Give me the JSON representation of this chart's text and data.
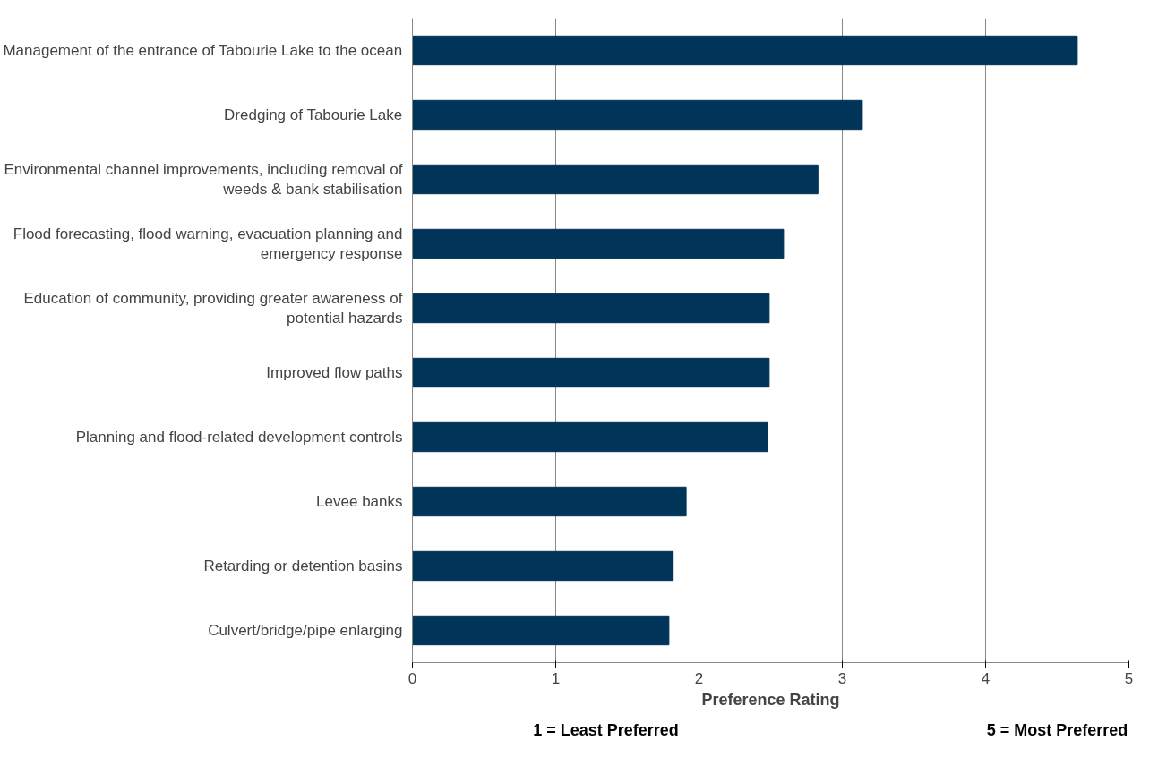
{
  "chart_data": {
    "type": "bar",
    "orientation": "horizontal",
    "categories": [
      "Management of the entrance of Tabourie Lake to the ocean",
      "Dredging of Tabourie Lake",
      "Environmental channel improvements, including removal of weeds & bank stabilisation",
      "Flood forecasting, flood warning, evacuation planning and emergency response",
      "Education of community, providing greater awareness of potential hazards",
      "Improved flow paths",
      "Planning and flood-related development controls",
      "Levee banks",
      "Retarding or detention basins",
      "Culvert/bridge/pipe enlarging"
    ],
    "values": [
      4.64,
      3.14,
      2.83,
      2.59,
      2.49,
      2.49,
      2.48,
      1.91,
      1.82,
      1.79
    ],
    "color": "#003459",
    "xlim": [
      0,
      5
    ],
    "xticks": [
      0,
      1,
      2,
      3,
      4,
      5
    ],
    "grid": "x",
    "xlabel": "Preference Rating",
    "annotations": [
      "1 = Least Preferred",
      "5 = Most Preferred"
    ]
  }
}
